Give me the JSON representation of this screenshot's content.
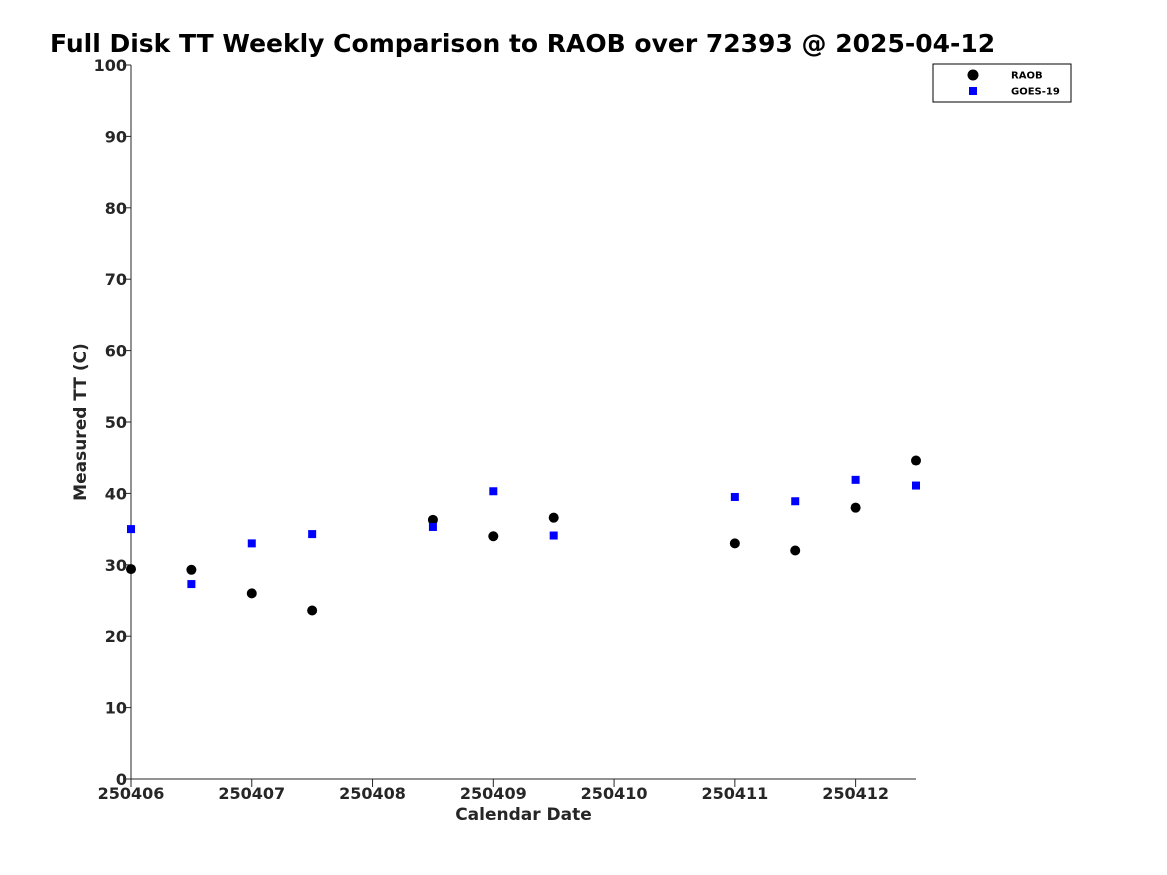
{
  "chart_data": {
    "type": "scatter",
    "title": "Full Disk TT Weekly Comparison to RAOB over 72393 @ 2025-04-12",
    "xlabel": "Calendar Date",
    "ylabel": "Measured TT (C)",
    "xlim": [
      250406,
      250412.5
    ],
    "ylim": [
      0,
      100
    ],
    "xticks": [
      250406,
      250407,
      250408,
      250409,
      250410,
      250411,
      250412
    ],
    "xtick_labels": [
      "250406",
      "250407",
      "250408",
      "250409",
      "250410",
      "250411",
      "250412"
    ],
    "yticks": [
      0,
      10,
      20,
      30,
      40,
      50,
      60,
      70,
      80,
      90,
      100
    ],
    "ytick_labels": [
      "0",
      "10",
      "20",
      "30",
      "40",
      "50",
      "60",
      "70",
      "80",
      "90",
      "100"
    ],
    "legend_position": "top-right",
    "series": [
      {
        "name": "RAOB",
        "marker": "circle",
        "color": "#000000",
        "x": [
          250406,
          250406.5,
          250407,
          250407.5,
          250408.5,
          250409,
          250409.5,
          250411,
          250411.5,
          250412,
          250412.5
        ],
        "y": [
          29.4,
          29.3,
          26.0,
          23.6,
          36.3,
          34.0,
          36.6,
          33.0,
          32.0,
          38.0,
          44.6
        ]
      },
      {
        "name": "GOES-19",
        "marker": "square",
        "color": "#0000ff",
        "x": [
          250406,
          250406.5,
          250407,
          250407.5,
          250408.5,
          250409,
          250409.5,
          250411,
          250411.5,
          250412,
          250412.5
        ],
        "y": [
          35.0,
          27.3,
          33.0,
          34.3,
          35.3,
          40.3,
          34.1,
          39.5,
          38.9,
          41.9,
          41.1
        ]
      }
    ]
  }
}
